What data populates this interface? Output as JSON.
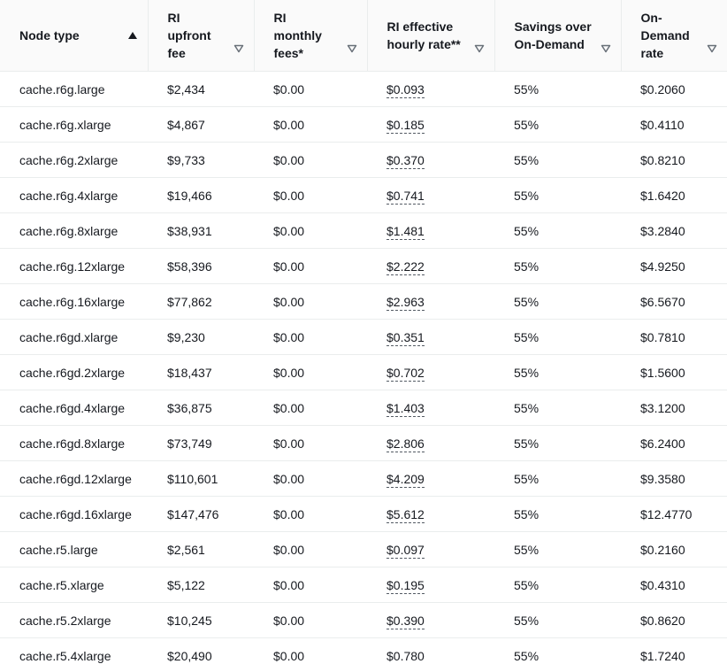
{
  "table": {
    "columns": [
      {
        "label": "Node type",
        "sort": "ascending"
      },
      {
        "label": "RI\nupfront\nfee",
        "sort": "none"
      },
      {
        "label": "RI\nmonthly\nfees*",
        "sort": "none"
      },
      {
        "label": "RI effective\nhourly rate**",
        "sort": "none"
      },
      {
        "label": "Savings over\nOn-Demand",
        "sort": "none"
      },
      {
        "label": "On-\nDemand\nrate",
        "sort": "none"
      }
    ],
    "rows": [
      [
        "cache.r6g.large",
        "$2,434",
        "$0.00",
        "$0.093",
        "55%",
        "$0.2060"
      ],
      [
        "cache.r6g.xlarge",
        "$4,867",
        "$0.00",
        "$0.185",
        "55%",
        "$0.4110"
      ],
      [
        "cache.r6g.2xlarge",
        "$9,733",
        "$0.00",
        "$0.370",
        "55%",
        "$0.8210"
      ],
      [
        "cache.r6g.4xlarge",
        "$19,466",
        "$0.00",
        "$0.741",
        "55%",
        "$1.6420"
      ],
      [
        "cache.r6g.8xlarge",
        "$38,931",
        "$0.00",
        "$1.481",
        "55%",
        "$3.2840"
      ],
      [
        "cache.r6g.12xlarge",
        "$58,396",
        "$0.00",
        "$2.222",
        "55%",
        "$4.9250"
      ],
      [
        "cache.r6g.16xlarge",
        "$77,862",
        "$0.00",
        "$2.963",
        "55%",
        "$6.5670"
      ],
      [
        "cache.r6gd.xlarge",
        "$9,230",
        "$0.00",
        "$0.351",
        "55%",
        "$0.7810"
      ],
      [
        "cache.r6gd.2xlarge",
        "$18,437",
        "$0.00",
        "$0.702",
        "55%",
        "$1.5600"
      ],
      [
        "cache.r6gd.4xlarge",
        "$36,875",
        "$0.00",
        "$1.403",
        "55%",
        "$3.1200"
      ],
      [
        "cache.r6gd.8xlarge",
        "$73,749",
        "$0.00",
        "$2.806",
        "55%",
        "$6.2400"
      ],
      [
        "cache.r6gd.12xlarge",
        "$110,601",
        "$0.00",
        "$4.209",
        "55%",
        "$9.3580"
      ],
      [
        "cache.r6gd.16xlarge",
        "$147,476",
        "$0.00",
        "$5.612",
        "55%",
        "$12.4770"
      ],
      [
        "cache.r5.large",
        "$2,561",
        "$0.00",
        "$0.097",
        "55%",
        "$0.2160"
      ],
      [
        "cache.r5.xlarge",
        "$5,122",
        "$0.00",
        "$0.195",
        "55%",
        "$0.4310"
      ],
      [
        "cache.r5.2xlarge",
        "$10,245",
        "$0.00",
        "$0.390",
        "55%",
        "$0.8620"
      ],
      [
        "cache.r5.4xlarge",
        "$20,490",
        "$0.00",
        "$0.780",
        "55%",
        "$1.7240"
      ]
    ]
  },
  "icons": {
    "sort_ascending": "caret-up-filled-icon",
    "sort_none": "caret-down-outline-icon"
  },
  "colors": {
    "text": "#16191f",
    "header_bg": "#fafafa",
    "border": "#eaeded",
    "icon_muted": "#687078"
  }
}
